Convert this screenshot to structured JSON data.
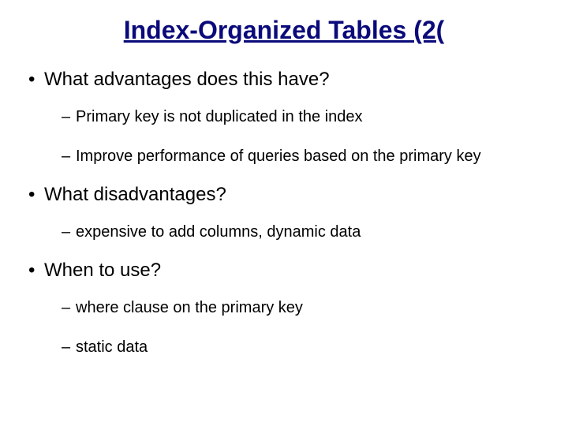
{
  "slide": {
    "title": "Index-Organized Tables (2(",
    "title_color": "#0a0a7a",
    "title_fontsize": 32,
    "body_fontsize_main": 24,
    "body_fontsize_sub": 20,
    "background_color": "#ffffff",
    "text_color": "#000000",
    "font_family": "Comic Sans MS",
    "sections": [
      {
        "question": "What advantages does this have?",
        "items": [
          "Primary key is not duplicated in the index",
          "Improve performance of queries based on the primary key"
        ]
      },
      {
        "question": "What disadvantages?",
        "items": [
          "expensive to add columns, dynamic data"
        ]
      },
      {
        "question": "When to use?",
        "items": [
          "where clause on the primary key",
          "static data"
        ]
      }
    ]
  }
}
